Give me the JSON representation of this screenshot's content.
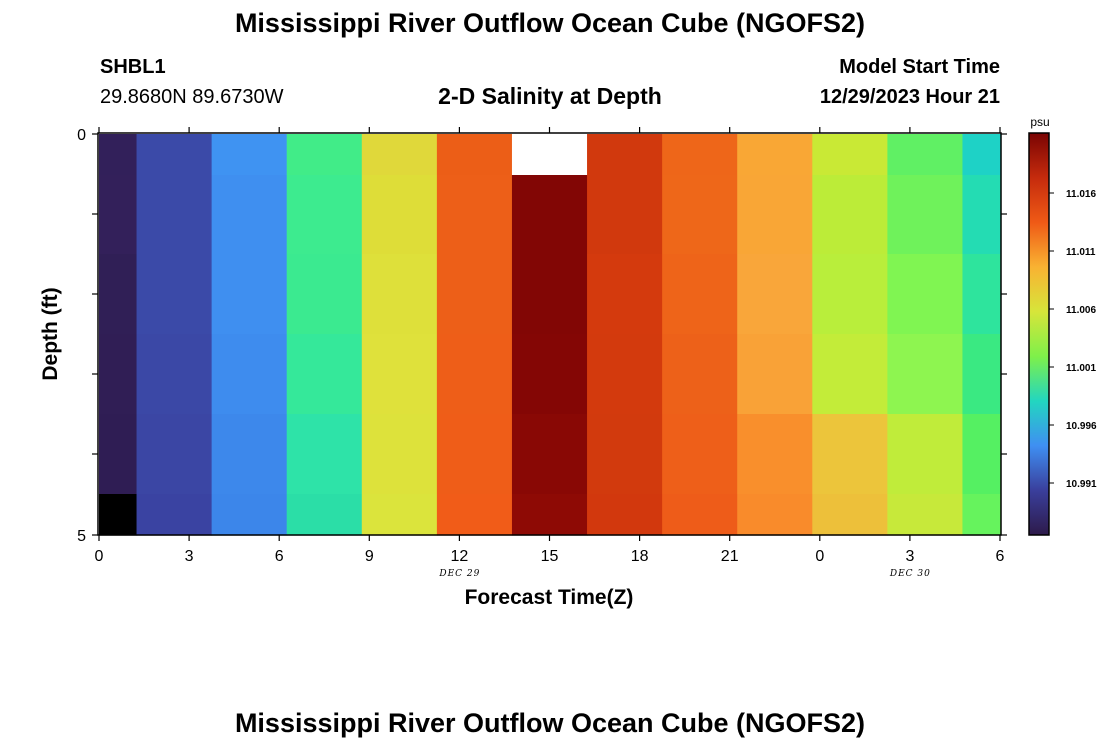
{
  "title": "Mississippi River Outflow Ocean Cube (NGOFS2)",
  "station": {
    "name": "SHBL1",
    "coords": "29.8680N  89.6730W"
  },
  "model_start": {
    "label": "Model Start Time",
    "value": "12/29/2023 Hour 21"
  },
  "colors": {
    "missing": "#ffffff",
    "land": "#000000",
    "axis": "#000000"
  },
  "chart_data": {
    "type": "heatmap",
    "title": "2-D Salinity at Depth",
    "xlabel": "Forecast Time(Z)",
    "ylabel": "Depth (ft)",
    "x_tick_labels": [
      "0",
      "3",
      "6",
      "9",
      "12",
      "15",
      "18",
      "21",
      "0",
      "3",
      "6"
    ],
    "x_day_labels": [
      {
        "label": "DEC 29",
        "at_tick": 4
      },
      {
        "label": "DEC 30",
        "at_tick": 9
      }
    ],
    "y_tick_labels": [
      "0",
      "5"
    ],
    "ylim": [
      0,
      5
    ],
    "colorbar": {
      "unit": "psu",
      "tick_labels": [
        "11.016",
        "11.011",
        "11.006",
        "11.001",
        "10.996",
        "10.991"
      ],
      "stops": [
        "#2d1a4a",
        "#3a3f9c",
        "#3f8ff2",
        "#22d6c0",
        "#7ef04a",
        "#d7e53a",
        "#f9b232",
        "#ef5a16",
        "#c52b0d",
        "#7a0403"
      ]
    },
    "column_boundaries_hours": [
      0,
      1.25,
      3.75,
      6.25,
      8.75,
      11.25,
      13.75,
      16.25,
      18.75,
      21.25,
      23.75,
      26.25,
      28.75,
      30
    ],
    "depth_levels": 5,
    "cell_colors": [
      [
        "#32205a",
        "#3b4aa8",
        "#3f93f2",
        "#41ec88",
        "#e0d83a",
        "#ec5e17",
        "#ffffff",
        "#d1390d",
        "#ee6619",
        "#f9a735",
        "#c9e935",
        "#60f064",
        "#1ed2c6"
      ],
      [
        "#33205a",
        "#3b4aa8",
        "#3f8ff0",
        "#3deb8f",
        "#dedd38",
        "#ed5f18",
        "#820605",
        "#d1390d",
        "#ee6719",
        "#f9a636",
        "#bcec38",
        "#6ff25b",
        "#24dcb3"
      ],
      [
        "#301f56",
        "#3b4aa8",
        "#3f8ff0",
        "#3bea90",
        "#dee03a",
        "#ed5f18",
        "#820605",
        "#d43a0d",
        "#ee6419",
        "#f9a63a",
        "#b9ee3b",
        "#80f552",
        "#2ee49d"
      ],
      [
        "#301e55",
        "#3b48a6",
        "#3e8cee",
        "#35e89a",
        "#dfe13b",
        "#ee5e18",
        "#840605",
        "#d33a0d",
        "#ed6119",
        "#f9a237",
        "#c3ec39",
        "#8ef550",
        "#3ae982"
      ],
      [
        "#2f1d54",
        "#3b46a4",
        "#3d88eb",
        "#2ee3a8",
        "#dde23b",
        "#ef5d18",
        "#890805",
        "#d23a0d",
        "#ee5f19",
        "#f98f2c",
        "#ecc53b",
        "#c0ec3a",
        "#55f062"
      ],
      [
        "#000000",
        "#3a43a2",
        "#3c86ea",
        "#2bdea7",
        "#dbe43c",
        "#f15c18",
        "#8e0a05",
        "#d2380d",
        "#ee5c19",
        "#f98b2b",
        "#edc03a",
        "#c7e93a",
        "#66f35d"
      ]
    ]
  }
}
